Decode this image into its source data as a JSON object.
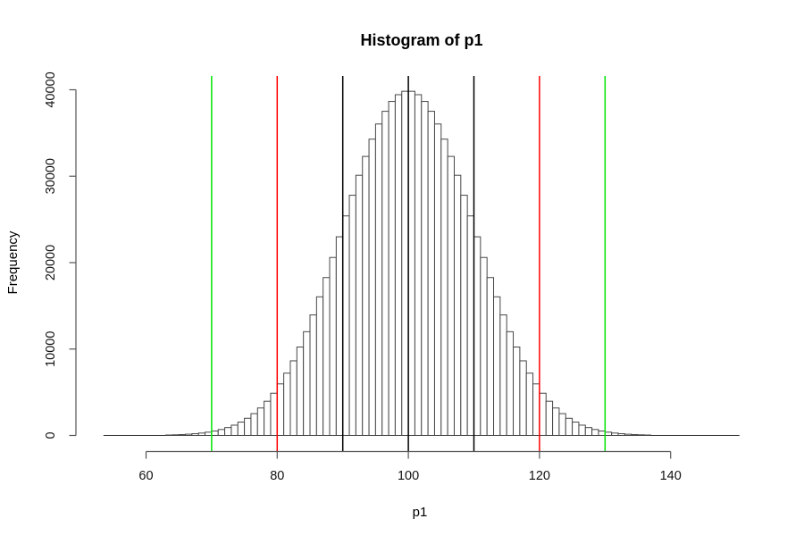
{
  "chart_data": {
    "type": "bar",
    "subtype": "histogram",
    "title": "Histogram of p1",
    "xlabel": "p1",
    "ylabel": "Frequency",
    "x_ticks": [
      60,
      80,
      100,
      120,
      140
    ],
    "y_ticks": [
      0,
      10000,
      20000,
      30000,
      40000
    ],
    "xlim": [
      53.5,
      150.5
    ],
    "ylim": [
      -1600,
      41600
    ],
    "x_axis_range": [
      60,
      140
    ],
    "y_axis_range": [
      0,
      40000
    ],
    "grid": false,
    "legend": null,
    "histogram": {
      "bin_start": 63,
      "bin_width": 1,
      "counts": [
        51,
        74,
        104,
        146,
        204,
        280,
        382,
        516,
        689,
        912,
        1194,
        1549,
        1988,
        2526,
        3179,
        3961,
        4886,
        5967,
        7213,
        8635,
        10234,
        12008,
        13950,
        16043,
        18270,
        20596,
        22989,
        25405,
        27795,
        30109,
        32289,
        34285,
        36040,
        37511,
        38651,
        39432,
        39828,
        39828,
        39432,
        38651,
        37511,
        36040,
        34285,
        32289,
        30109,
        27795,
        25405,
        22989,
        20596,
        18270,
        16043,
        13950,
        12008,
        10234,
        8635,
        7213,
        5967,
        4886,
        3961,
        3179,
        2526,
        1988,
        1549,
        1194,
        912,
        689,
        516,
        382,
        280,
        204,
        146,
        104,
        74,
        51
      ]
    },
    "vlines": [
      {
        "x": 70,
        "color": "#00E400",
        "label": "green-line-70"
      },
      {
        "x": 80,
        "color": "#FF0000",
        "label": "red-line-80"
      },
      {
        "x": 90,
        "color": "#000000",
        "label": "black-line-90"
      },
      {
        "x": 100,
        "color": "#000000",
        "label": "black-line-100"
      },
      {
        "x": 110,
        "color": "#000000",
        "label": "black-line-110"
      },
      {
        "x": 120,
        "color": "#FF0000",
        "label": "red-line-120"
      },
      {
        "x": 130,
        "color": "#00E400",
        "label": "green-line-130"
      }
    ],
    "style": {
      "background": "#FFFFFF",
      "bar_fill": "#FFFFFF",
      "bar_border": "#474747",
      "baseline_color": "#333333",
      "axis_color": "#555555",
      "text_color": "#000000",
      "vline_width": 1.5
    }
  }
}
